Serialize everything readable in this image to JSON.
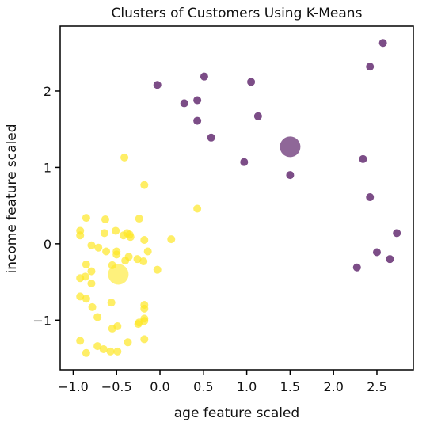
{
  "chart_data": {
    "type": "scatter",
    "title": "Clusters of Customers Using K-Means",
    "xlabel": "age feature scaled",
    "ylabel": "income feature scaled",
    "xlim": [
      -1.15,
      2.92
    ],
    "ylim": [
      -1.65,
      2.85
    ],
    "xticks": [
      -1.0,
      -0.5,
      0.0,
      0.5,
      1.0,
      1.5,
      2.0,
      2.5
    ],
    "xtick_labels": [
      "−1.0",
      "−0.5",
      "0.0",
      "0.5",
      "1.0",
      "1.5",
      "2.0",
      "2.5"
    ],
    "yticks": [
      -1,
      0,
      1,
      2
    ],
    "ytick_labels": [
      "−1",
      "0",
      "1",
      "2"
    ],
    "grid": false,
    "series": [
      {
        "color": "#fde725",
        "points": [
          [
            -0.41,
            1.13
          ],
          [
            -0.18,
            0.77
          ],
          [
            0.43,
            0.46
          ],
          [
            -0.92,
            0.17
          ],
          [
            -0.92,
            0.11
          ],
          [
            -0.85,
            0.34
          ],
          [
            -0.63,
            0.32
          ],
          [
            -0.24,
            0.33
          ],
          [
            -0.79,
            -0.02
          ],
          [
            -0.71,
            -0.05
          ],
          [
            -0.64,
            0.14
          ],
          [
            -0.51,
            0.17
          ],
          [
            -0.42,
            0.11
          ],
          [
            -0.35,
            0.12
          ],
          [
            -0.38,
            0.14
          ],
          [
            -0.34,
            0.09
          ],
          [
            -0.18,
            0.05
          ],
          [
            0.13,
            0.06
          ],
          [
            -0.62,
            -0.1
          ],
          [
            -0.5,
            -0.1
          ],
          [
            -0.5,
            -0.14
          ],
          [
            -0.36,
            -0.17
          ],
          [
            -0.26,
            -0.2
          ],
          [
            -0.4,
            -0.22
          ],
          [
            -0.19,
            -0.23
          ],
          [
            -0.14,
            -0.1
          ],
          [
            -0.85,
            -0.27
          ],
          [
            -0.79,
            -0.36
          ],
          [
            -0.55,
            -0.28
          ],
          [
            -0.86,
            -0.43
          ],
          [
            -0.92,
            -0.45
          ],
          [
            -0.79,
            -0.52
          ],
          [
            -0.03,
            -0.34
          ],
          [
            -0.92,
            -0.69
          ],
          [
            -0.85,
            -0.72
          ],
          [
            -0.56,
            -0.77
          ],
          [
            -0.78,
            -0.83
          ],
          [
            -0.18,
            -0.8
          ],
          [
            -0.18,
            -0.85
          ],
          [
            -0.72,
            -0.96
          ],
          [
            -0.18,
            -0.98
          ],
          [
            -0.18,
            -1.01
          ],
          [
            -0.24,
            -1.03
          ],
          [
            -0.25,
            -1.05
          ],
          [
            -0.55,
            -1.11
          ],
          [
            -0.49,
            -1.08
          ],
          [
            -0.92,
            -1.27
          ],
          [
            -0.18,
            -1.25
          ],
          [
            -0.72,
            -1.34
          ],
          [
            -0.65,
            -1.38
          ],
          [
            -0.57,
            -1.41
          ],
          [
            -0.49,
            -1.41
          ],
          [
            -0.37,
            -1.29
          ],
          [
            -0.85,
            -1.43
          ]
        ],
        "centroid": [
          -0.48,
          -0.4
        ]
      },
      {
        "color": "#440154",
        "points": [
          [
            2.57,
            2.63
          ],
          [
            2.42,
            2.32
          ],
          [
            -0.03,
            2.08
          ],
          [
            0.51,
            2.19
          ],
          [
            1.05,
            2.12
          ],
          [
            0.28,
            1.84
          ],
          [
            0.43,
            1.88
          ],
          [
            0.43,
            1.61
          ],
          [
            1.13,
            1.67
          ],
          [
            0.59,
            1.39
          ],
          [
            0.97,
            1.07
          ],
          [
            1.5,
            0.9
          ],
          [
            2.34,
            1.11
          ],
          [
            2.42,
            0.61
          ],
          [
            2.73,
            0.14
          ],
          [
            2.5,
            -0.11
          ],
          [
            2.65,
            -0.2
          ],
          [
            2.27,
            -0.31
          ]
        ],
        "centroid": [
          1.5,
          1.27
        ]
      }
    ]
  }
}
